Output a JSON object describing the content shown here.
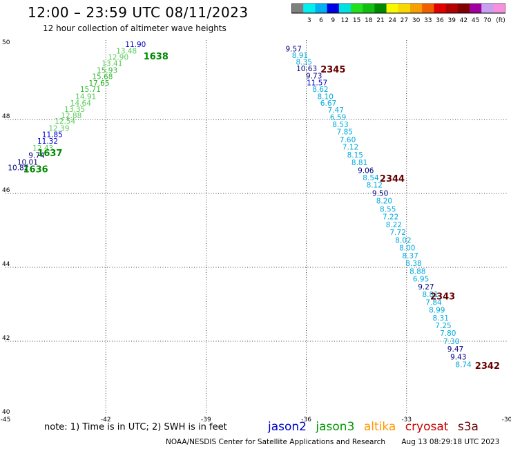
{
  "header": {
    "title": "12:00 – 23:59 UTC 08/11/2023",
    "subtitle": "12 hour collection of altimeter wave heights"
  },
  "colorbar": {
    "labels": [
      "3",
      "6",
      "9",
      "12",
      "15",
      "18",
      "21",
      "24",
      "27",
      "30",
      "33",
      "36",
      "39",
      "42",
      "45",
      "70"
    ],
    "unit": "(ft)",
    "colors": [
      "#7f7f7f",
      "#00f0f0",
      "#00b0f0",
      "#0000e0",
      "#00e0e0",
      "#20e020",
      "#10c010",
      "#008800",
      "#f8f800",
      "#f8d800",
      "#f8a000",
      "#f06000",
      "#e00000",
      "#b00000",
      "#800000",
      "#a000a0",
      "#c8a0f0",
      "#f890e0",
      "#000000"
    ]
  },
  "footer": {
    "note": "note:  1) Time is in UTC;  2) SWH is in feet",
    "legend": [
      {
        "name": "jason2",
        "color": "#0000cc"
      },
      {
        "name": "jason3",
        "color": "#009900"
      },
      {
        "name": "altika",
        "color": "#ff9900"
      },
      {
        "name": "cryosat",
        "color": "#cc0000"
      },
      {
        "name": "s3a",
        "color": "#660000"
      }
    ],
    "credit": "NOAA/NESDIS Center for Satellite Applications and Research",
    "timestamp": "Aug 13 08:29:18 UTC 2023"
  },
  "chart_data": {
    "type": "scatter",
    "x_ticks": [
      "-45",
      "-42",
      "-39",
      "-36",
      "-33",
      "-30"
    ],
    "y_ticks": [
      "40",
      "42",
      "44",
      "46",
      "48",
      "50"
    ],
    "xlim": [
      -45,
      -30
    ],
    "ylim": [
      40,
      50
    ],
    "grid": true,
    "series": [
      {
        "satellite": "jason3",
        "points": [
          {
            "x": -44.62,
            "y": 46.7,
            "v": "10.82",
            "c": "#000080"
          },
          {
            "x": -44.34,
            "y": 46.85,
            "v": "10.01",
            "c": "#000080"
          },
          {
            "x": -44.07,
            "y": 47.04,
            "v": "9.74",
            "c": "#000080"
          },
          {
            "x": -43.88,
            "y": 47.23,
            "v": "12.43",
            "c": "#55cc55"
          },
          {
            "x": -43.74,
            "y": 47.42,
            "v": "11.32",
            "c": "#0000cc"
          },
          {
            "x": -43.6,
            "y": 47.6,
            "v": "11.85",
            "c": "#0000cc"
          },
          {
            "x": -43.4,
            "y": 47.77,
            "v": "12.39",
            "c": "#55cc55"
          },
          {
            "x": -43.22,
            "y": 47.96,
            "v": "12.54",
            "c": "#55cc55"
          },
          {
            "x": -43.03,
            "y": 48.11,
            "v": "12.88",
            "c": "#55cc55"
          },
          {
            "x": -42.93,
            "y": 48.28,
            "v": "13.35",
            "c": "#55cc55"
          },
          {
            "x": -42.75,
            "y": 48.45,
            "v": "14.64",
            "c": "#55cc55"
          },
          {
            "x": -42.6,
            "y": 48.63,
            "v": "14.91",
            "c": "#55cc55"
          },
          {
            "x": -42.46,
            "y": 48.82,
            "v": "15.71",
            "c": "#33bb33"
          },
          {
            "x": -42.2,
            "y": 48.99,
            "v": "17.65",
            "c": "#22aa22"
          },
          {
            "x": -42.1,
            "y": 49.17,
            "v": "15.68",
            "c": "#33bb33"
          },
          {
            "x": -41.96,
            "y": 49.34,
            "v": "15.93",
            "c": "#33bb33"
          },
          {
            "x": -41.81,
            "y": 49.52,
            "v": "13.41",
            "c": "#55cc55"
          },
          {
            "x": -41.63,
            "y": 49.69,
            "v": "12.90",
            "c": "#55cc55"
          },
          {
            "x": -41.38,
            "y": 49.86,
            "v": "13.48",
            "c": "#55cc55"
          },
          {
            "x": -41.11,
            "y": 50.04,
            "v": "11.90",
            "c": "#0000cc"
          }
        ],
        "time_labels": [
          {
            "x": -44.1,
            "y": 46.66,
            "t": "1636",
            "c": "#008800"
          },
          {
            "x": -43.67,
            "y": 47.1,
            "t": "1637",
            "c": "#008800"
          },
          {
            "x": -40.5,
            "y": 49.72,
            "t": "1638",
            "c": "#008800"
          }
        ]
      },
      {
        "satellite": "s3a",
        "points": [
          {
            "x": -36.38,
            "y": 49.92,
            "v": "9.57",
            "c": "#000080"
          },
          {
            "x": -36.19,
            "y": 49.74,
            "v": "8.91",
            "c": "#00aadd"
          },
          {
            "x": -36.07,
            "y": 49.56,
            "v": "8.35",
            "c": "#00aadd"
          },
          {
            "x": -35.99,
            "y": 49.38,
            "v": "10.63",
            "c": "#000080"
          },
          {
            "x": -35.77,
            "y": 49.19,
            "v": "9.73",
            "c": "#000080"
          },
          {
            "x": -35.68,
            "y": 49.0,
            "v": "11.57",
            "c": "#0000cc"
          },
          {
            "x": -35.58,
            "y": 48.82,
            "v": "8.62",
            "c": "#00aadd"
          },
          {
            "x": -35.43,
            "y": 48.63,
            "v": "8.10",
            "c": "#00aadd"
          },
          {
            "x": -35.34,
            "y": 48.45,
            "v": "6.67",
            "c": "#00aadd"
          },
          {
            "x": -35.12,
            "y": 48.26,
            "v": "7.47",
            "c": "#00aadd"
          },
          {
            "x": -35.05,
            "y": 48.07,
            "v": "6.59",
            "c": "#00aadd"
          },
          {
            "x": -34.98,
            "y": 47.87,
            "v": "8.53",
            "c": "#00aadd"
          },
          {
            "x": -34.85,
            "y": 47.67,
            "v": "7.85",
            "c": "#00aadd"
          },
          {
            "x": -34.76,
            "y": 47.46,
            "v": "7.60",
            "c": "#00aadd"
          },
          {
            "x": -34.68,
            "y": 47.26,
            "v": "7.12",
            "c": "#00aadd"
          },
          {
            "x": -34.54,
            "y": 47.05,
            "v": "8.15",
            "c": "#00aadd"
          },
          {
            "x": -34.41,
            "y": 46.84,
            "v": "8.81",
            "c": "#00aadd"
          },
          {
            "x": -34.22,
            "y": 46.63,
            "v": "9.06",
            "c": "#000080"
          },
          {
            "x": -34.07,
            "y": 46.43,
            "v": "8.54",
            "c": "#00aadd"
          },
          {
            "x": -33.96,
            "y": 46.23,
            "v": "8.12",
            "c": "#00aadd"
          },
          {
            "x": -33.79,
            "y": 46.01,
            "v": "9.50",
            "c": "#000080"
          },
          {
            "x": -33.67,
            "y": 45.8,
            "v": "8.20",
            "c": "#00aadd"
          },
          {
            "x": -33.56,
            "y": 45.58,
            "v": "8.55",
            "c": "#00aadd"
          },
          {
            "x": -33.48,
            "y": 45.37,
            "v": "7.22",
            "c": "#00aadd"
          },
          {
            "x": -33.38,
            "y": 45.16,
            "v": "8.22",
            "c": "#00aadd"
          },
          {
            "x": -33.26,
            "y": 44.95,
            "v": "7.72",
            "c": "#00aadd"
          },
          {
            "x": -33.1,
            "y": 44.74,
            "v": "8.02",
            "c": "#00aadd"
          },
          {
            "x": -32.98,
            "y": 44.53,
            "v": "8.00",
            "c": "#00aadd"
          },
          {
            "x": -32.89,
            "y": 44.32,
            "v": "8.37",
            "c": "#00aadd"
          },
          {
            "x": -32.79,
            "y": 44.11,
            "v": "8.38",
            "c": "#00aadd"
          },
          {
            "x": -32.67,
            "y": 43.9,
            "v": "8.88",
            "c": "#00aadd"
          },
          {
            "x": -32.57,
            "y": 43.69,
            "v": "6.95",
            "c": "#00aadd"
          },
          {
            "x": -32.42,
            "y": 43.48,
            "v": "9.27",
            "c": "#000080"
          },
          {
            "x": -32.29,
            "y": 43.27,
            "v": "8.81",
            "c": "#00aadd"
          },
          {
            "x": -32.19,
            "y": 43.06,
            "v": "7.84",
            "c": "#00aadd"
          },
          {
            "x": -32.09,
            "y": 42.85,
            "v": "8.99",
            "c": "#00aadd"
          },
          {
            "x": -31.98,
            "y": 42.64,
            "v": "8.31",
            "c": "#00aadd"
          },
          {
            "x": -31.9,
            "y": 42.43,
            "v": "7.25",
            "c": "#00aadd"
          },
          {
            "x": -31.76,
            "y": 42.22,
            "v": "7.80",
            "c": "#00aadd"
          },
          {
            "x": -31.66,
            "y": 42.0,
            "v": "7.30",
            "c": "#00aadd"
          },
          {
            "x": -31.54,
            "y": 41.79,
            "v": "9.47",
            "c": "#000080"
          },
          {
            "x": -31.45,
            "y": 41.58,
            "v": "9.43",
            "c": "#000080"
          },
          {
            "x": -31.3,
            "y": 41.37,
            "v": "8.74",
            "c": "#00aadd"
          }
        ],
        "time_labels": [
          {
            "x": -35.2,
            "y": 49.36,
            "t": "2345",
            "c": "#660000"
          },
          {
            "x": -33.43,
            "y": 46.41,
            "t": "2344",
            "c": "#660000"
          },
          {
            "x": -31.92,
            "y": 43.22,
            "t": "2343",
            "c": "#660000"
          },
          {
            "x": -30.58,
            "y": 41.35,
            "t": "2342",
            "c": "#660000"
          }
        ]
      }
    ]
  }
}
